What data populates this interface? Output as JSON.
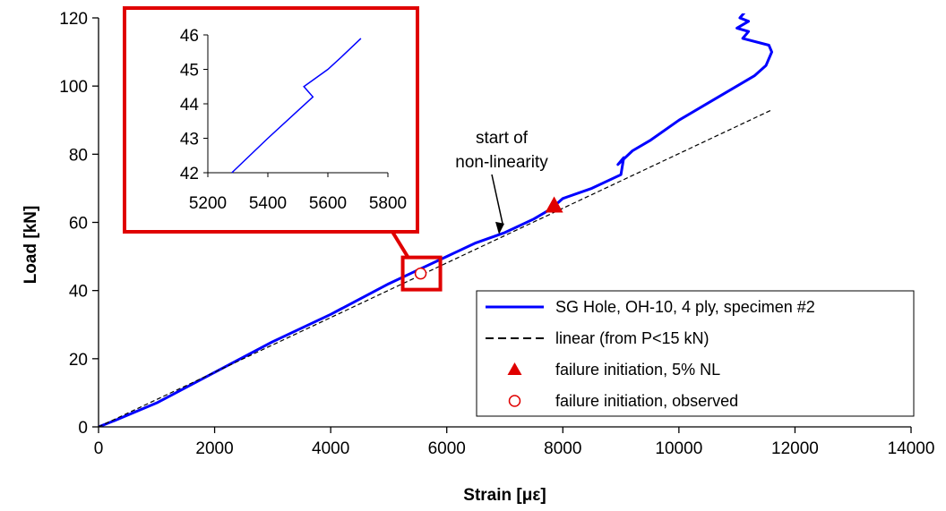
{
  "chart_data": {
    "type": "line",
    "xlabel": "Strain [με]",
    "ylabel": "Load [kN]",
    "xlim": [
      0,
      14000
    ],
    "ylim": [
      0,
      120
    ],
    "x_ticks": [
      0,
      2000,
      4000,
      6000,
      8000,
      10000,
      12000,
      14000
    ],
    "y_ticks": [
      0,
      20,
      40,
      60,
      80,
      100,
      120
    ],
    "grid": false,
    "legend_position": "bottom-right",
    "series": [
      {
        "name": "SG Hole, OH-10, 4 ply, specimen #2",
        "style": "solid",
        "color": "#0000FF",
        "x": [
          0,
          300,
          1000,
          2000,
          3000,
          4000,
          5000,
          5500,
          6000,
          6500,
          7000,
          7500,
          7800,
          8000,
          8500,
          9000,
          9050,
          8950,
          9200,
          9500,
          10000,
          10500,
          11000,
          11300,
          11500,
          11600,
          11550,
          11100,
          11200,
          11000,
          11200,
          11050,
          11150
        ],
        "y": [
          0,
          2,
          7,
          16,
          25,
          33,
          42,
          46,
          50,
          54,
          57,
          61,
          64,
          67,
          70,
          74,
          79,
          77,
          81,
          84,
          90,
          95,
          100,
          103,
          106,
          110,
          112,
          114,
          116,
          117,
          119,
          120,
          122
        ]
      },
      {
        "name": "linear (from P<15 kN)",
        "style": "dashed",
        "color": "#000000",
        "x": [
          0,
          11600
        ],
        "y": [
          0,
          93
        ]
      },
      {
        "name": "failure initiation, 5% NL",
        "marker": "triangle",
        "color": "#E00000",
        "x": [
          7850
        ],
        "y": [
          65
        ]
      },
      {
        "name": "failure initiation, observed",
        "marker": "circle-open",
        "color": "#E00000",
        "x": [
          5550
        ],
        "y": [
          45
        ]
      }
    ],
    "annotations": [
      {
        "text_lines": [
          "start of",
          "non-linearity"
        ],
        "arrow_to_x": 6900,
        "arrow_to_y": 56.5
      }
    ],
    "inset": {
      "xlim": [
        5200,
        5800
      ],
      "ylim": [
        42,
        46
      ],
      "x_ticks": [
        5200,
        5400,
        5600,
        5800
      ],
      "y_ticks": [
        42,
        43,
        44,
        45,
        46
      ],
      "border_color": "#E00000",
      "series": [
        {
          "color": "#0000FF",
          "x": [
            5280,
            5400,
            5500,
            5550,
            5520,
            5600,
            5650,
            5710
          ],
          "y": [
            42,
            43,
            43.8,
            44.2,
            44.5,
            45.0,
            45.4,
            45.9
          ]
        }
      ]
    }
  }
}
